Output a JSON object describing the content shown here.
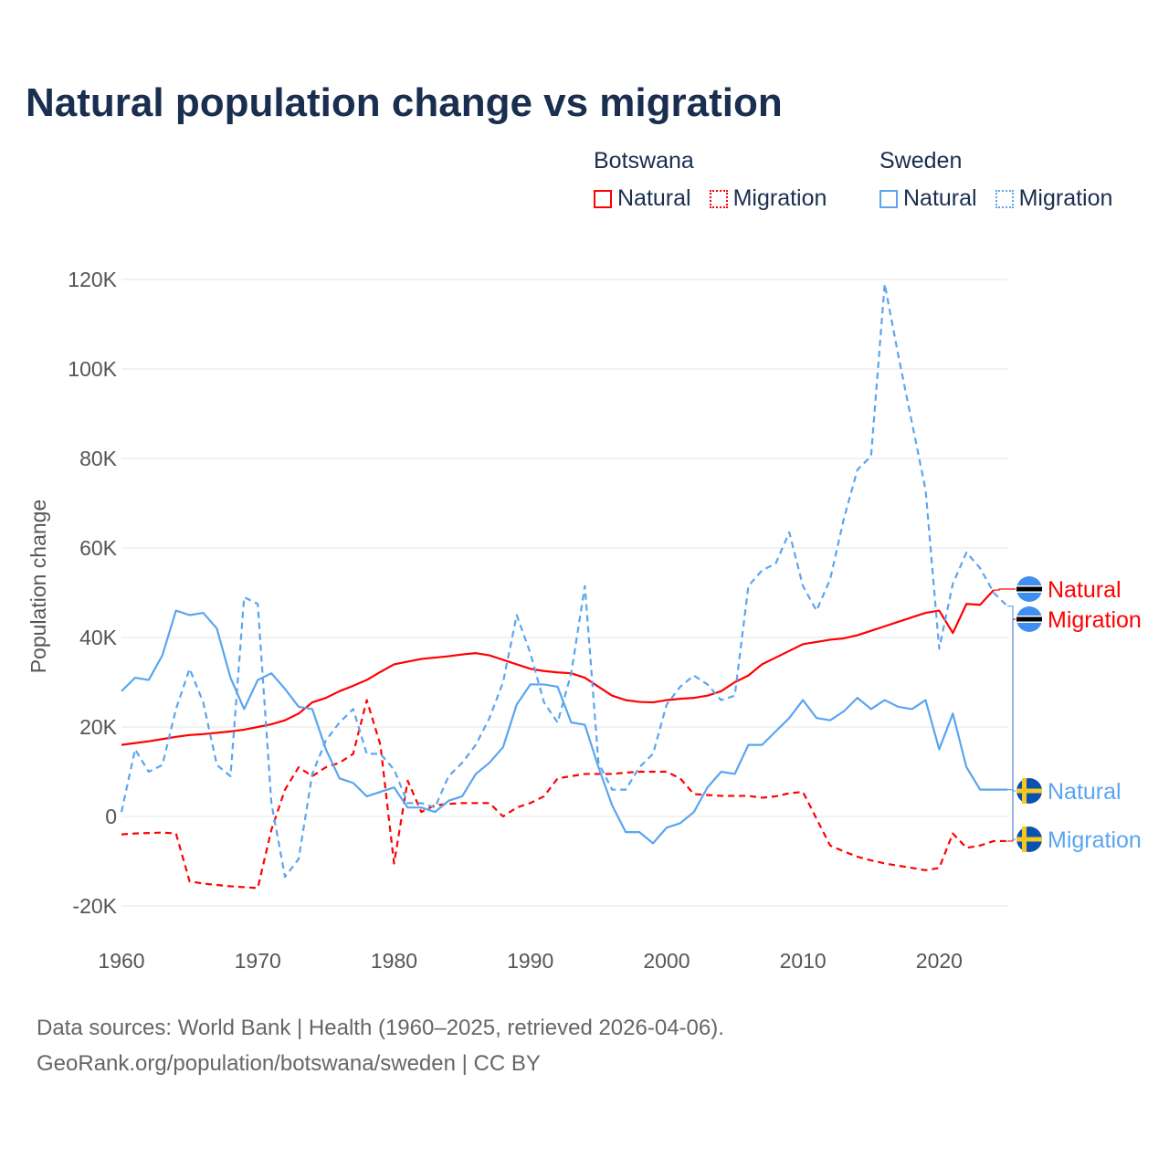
{
  "title": "Natural population change vs migration",
  "legend": {
    "groups": [
      {
        "name": "Botswana",
        "items": [
          {
            "label": "Natural",
            "style": "solid",
            "color": "#ff0000"
          },
          {
            "label": "Migration",
            "style": "dotted",
            "color": "#ff0000"
          }
        ]
      },
      {
        "name": "Sweden",
        "items": [
          {
            "label": "Natural",
            "style": "solid",
            "color": "#5aa5f0"
          },
          {
            "label": "Migration",
            "style": "dotted",
            "color": "#5aa5f0"
          }
        ]
      }
    ]
  },
  "footer": {
    "line1": "Data sources: World Bank | Health (1960–2025, retrieved 2026-04-06).",
    "line2": "GeoRank.org/population/botswana/sweden | CC BY"
  },
  "chart_data": {
    "type": "line",
    "title": "Natural population change vs migration",
    "xlabel": "",
    "ylabel": "Population change",
    "xlim": [
      1960,
      2025
    ],
    "ylim": [
      -20000,
      120000
    ],
    "x_ticks": [
      1960,
      1970,
      1980,
      1990,
      2000,
      2010,
      2020
    ],
    "x_tick_labels": [
      "1960",
      "1970",
      "1980",
      "1990",
      "2000",
      "2010",
      "2020"
    ],
    "y_ticks": [
      -20000,
      0,
      20000,
      40000,
      60000,
      80000,
      100000,
      120000
    ],
    "y_tick_labels": [
      "-20K",
      "0",
      "20K",
      "40K",
      "60K",
      "80K",
      "100K",
      "120K"
    ],
    "grid": true,
    "start_year": 1960,
    "series": [
      {
        "name": "Botswana Natural",
        "end_label": "Natural",
        "country": "Botswana",
        "color": "#ff0000",
        "dash": false,
        "values": [
          16,
          16.4,
          16.8,
          17.3,
          17.8,
          18.2,
          18.4,
          18.7,
          19,
          19.4,
          20,
          20.6,
          21.5,
          23,
          25.5,
          26.5,
          28,
          29.2,
          30.5,
          32.3,
          34,
          34.6,
          35.2,
          35.5,
          35.8,
          36.2,
          36.5,
          36,
          35,
          34,
          33,
          32.5,
          32.2,
          32,
          31,
          29,
          27,
          26,
          25.6,
          25.5,
          26,
          26.3,
          26.5,
          27,
          28,
          30,
          31.5,
          34,
          35.5,
          37,
          38.5,
          39,
          39.5,
          39.8,
          40.5,
          41.5,
          42.5,
          43.5,
          44.5,
          45.5,
          46,
          41,
          47.5,
          47.3,
          50.6
        ]
      },
      {
        "name": "Botswana Migration",
        "end_label": "Migration",
        "country": "Botswana",
        "color": "#ff0000",
        "dash": true,
        "values": [
          -4,
          -3.8,
          -3.7,
          -3.6,
          -3.8,
          -14.5,
          -15,
          -15.3,
          -15.6,
          -15.8,
          -16,
          -3,
          6,
          11,
          9,
          11,
          12,
          14,
          26,
          16,
          -10.5,
          8,
          1,
          2.5,
          2.8,
          3,
          3,
          3,
          0,
          2,
          3,
          4.5,
          8.5,
          9,
          9.5,
          9.5,
          9.5,
          9.8,
          10,
          10,
          10,
          8.5,
          5,
          4.8,
          4.6,
          4.6,
          4.6,
          4.2,
          4.5,
          5.2,
          5.5,
          -0.5,
          -6.5,
          -7.8,
          -9,
          -9.8,
          -10.5,
          -11,
          -11.5,
          -12,
          -11.5,
          -3.8,
          -7,
          -6.5,
          -5.5,
          -5.5
        ]
      },
      {
        "name": "Sweden Natural",
        "end_label": "Natural",
        "country": "Sweden",
        "color": "#5aa5f0",
        "dash": false,
        "values": [
          28,
          31,
          30.5,
          36,
          46,
          45,
          45.5,
          42,
          31,
          24,
          30.5,
          32,
          28.5,
          24.5,
          24,
          15,
          8.5,
          7.5,
          4.5,
          5.5,
          6.5,
          2,
          2,
          1,
          3.5,
          4.5,
          9.5,
          12,
          15.5,
          25,
          29.5,
          29.5,
          29,
          21,
          20.5,
          11,
          2.5,
          -3.5,
          -3.5,
          -6,
          -2.5,
          -1.5,
          1,
          6.5,
          10,
          9.5,
          16,
          16,
          19,
          22,
          26,
          22,
          21.5,
          23.5,
          26.5,
          24,
          26,
          24.5,
          24,
          26,
          15,
          23,
          11,
          6,
          6,
          6
        ]
      },
      {
        "name": "Sweden Migration",
        "end_label": "Migration",
        "country": "Sweden",
        "color": "#5aa5f0",
        "dash": true,
        "values": [
          1,
          15,
          10,
          11.5,
          24,
          33,
          25.5,
          11.5,
          9,
          49,
          47.5,
          3,
          -13.5,
          -9.5,
          9.5,
          17,
          21,
          24,
          14,
          14,
          10.5,
          3,
          3,
          2,
          9,
          12,
          16,
          22,
          30,
          45,
          36.5,
          25.5,
          21,
          32,
          51.5,
          12,
          6,
          6,
          11,
          14,
          25,
          29,
          31.5,
          29.5,
          26,
          27,
          51.5,
          55,
          56.5,
          63.5,
          51.5,
          46,
          53,
          66.5,
          77.5,
          80.5,
          119,
          103,
          88,
          73,
          37.5,
          52,
          59,
          55.5,
          50,
          47
        ]
      }
    ],
    "value_unit": "thousands"
  }
}
